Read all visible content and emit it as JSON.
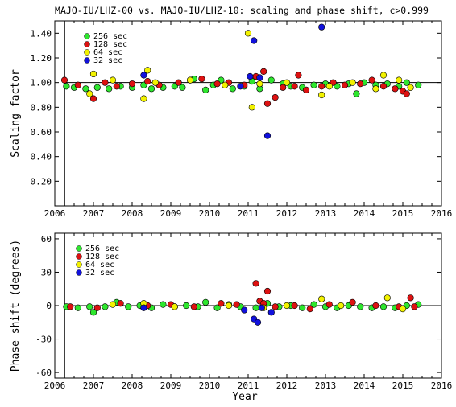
{
  "title": "MAJO-IU/LHZ-00 vs. MAJO-IU/LHZ-10: scaling and phase shift, c>0.999",
  "xlabel": "Year",
  "colors": {
    "256 sec": "#2ee62e",
    "128 sec": "#dd1111",
    "64 sec": "#f2f200",
    "32 sec": "#1111dd"
  },
  "chart_data": [
    {
      "type": "scatter",
      "ylabel": "Scaling factor",
      "xlim": [
        2006,
        2016
      ],
      "ylim": [
        0.0,
        1.5
      ],
      "x_ticks": [
        "2006",
        "2007",
        "2008",
        "2009",
        "2010",
        "2011",
        "2012",
        "2013",
        "2014",
        "2015",
        "2016"
      ],
      "y_ticks": [
        {
          "v": 0.2,
          "label": "0.20"
        },
        {
          "v": 0.4,
          "label": "0.40"
        },
        {
          "v": 0.6,
          "label": "0.60"
        },
        {
          "v": 0.8,
          "label": "0.80"
        },
        {
          "v": 1.0,
          "label": "1.00"
        },
        {
          "v": 1.2,
          "label": "1.20"
        },
        {
          "v": 1.4,
          "label": "1.40"
        }
      ],
      "reference_line": 1.0,
      "legend": [
        "256 sec",
        "128 sec",
        "64 sec",
        "32 sec"
      ],
      "series": [
        {
          "name": "256 sec",
          "points": [
            [
              2006.3,
              0.97
            ],
            [
              2006.5,
              0.96
            ],
            [
              2006.8,
              0.95
            ],
            [
              2007.1,
              0.96
            ],
            [
              2007.4,
              0.95
            ],
            [
              2007.7,
              0.97
            ],
            [
              2008.0,
              0.96
            ],
            [
              2008.3,
              0.98
            ],
            [
              2008.5,
              0.95
            ],
            [
              2008.8,
              0.96
            ],
            [
              2009.1,
              0.97
            ],
            [
              2009.3,
              0.96
            ],
            [
              2009.6,
              1.03
            ],
            [
              2009.9,
              0.94
            ],
            [
              2010.1,
              0.98
            ],
            [
              2010.3,
              1.02
            ],
            [
              2010.6,
              0.95
            ],
            [
              2010.9,
              0.97
            ],
            [
              2011.1,
              1.01
            ],
            [
              2011.3,
              0.95
            ],
            [
              2011.6,
              1.02
            ],
            [
              2011.9,
              0.99
            ],
            [
              2012.1,
              0.97
            ],
            [
              2012.4,
              0.96
            ],
            [
              2012.7,
              0.98
            ],
            [
              2013.0,
              0.99
            ],
            [
              2013.3,
              0.97
            ],
            [
              2013.6,
              0.99
            ],
            [
              2013.8,
              0.91
            ],
            [
              2014.0,
              1.0
            ],
            [
              2014.3,
              0.98
            ],
            [
              2014.6,
              0.99
            ],
            [
              2014.9,
              0.97
            ],
            [
              2015.1,
              1.0
            ],
            [
              2015.4,
              0.98
            ]
          ]
        },
        {
          "name": "128 sec",
          "points": [
            [
              2006.25,
              1.02
            ],
            [
              2006.6,
              0.98
            ],
            [
              2007.0,
              0.87
            ],
            [
              2007.3,
              1.0
            ],
            [
              2007.6,
              0.97
            ],
            [
              2008.0,
              0.99
            ],
            [
              2008.4,
              1.01
            ],
            [
              2008.7,
              0.98
            ],
            [
              2009.2,
              1.0
            ],
            [
              2009.5,
              1.02
            ],
            [
              2009.8,
              1.03
            ],
            [
              2010.2,
              0.99
            ],
            [
              2010.5,
              1.0
            ],
            [
              2010.9,
              0.98
            ],
            [
              2011.2,
              1.05
            ],
            [
              2011.4,
              1.09
            ],
            [
              2011.5,
              0.83
            ],
            [
              2011.7,
              0.88
            ],
            [
              2011.9,
              0.96
            ],
            [
              2012.2,
              0.97
            ],
            [
              2012.3,
              1.06
            ],
            [
              2012.5,
              0.94
            ],
            [
              2012.9,
              0.97
            ],
            [
              2013.2,
              1.0
            ],
            [
              2013.5,
              0.98
            ],
            [
              2013.9,
              0.99
            ],
            [
              2014.2,
              1.02
            ],
            [
              2014.5,
              0.97
            ],
            [
              2014.8,
              0.95
            ],
            [
              2015.0,
              0.93
            ],
            [
              2015.1,
              0.91
            ]
          ]
        },
        {
          "name": "64 sec",
          "points": [
            [
              2006.9,
              0.91
            ],
            [
              2007.0,
              1.07
            ],
            [
              2007.5,
              1.02
            ],
            [
              2008.3,
              0.87
            ],
            [
              2008.4,
              1.1
            ],
            [
              2008.6,
              1.0
            ],
            [
              2009.5,
              1.02
            ],
            [
              2010.4,
              0.98
            ],
            [
              2011.0,
              1.4
            ],
            [
              2011.1,
              0.8
            ],
            [
              2011.3,
              0.99
            ],
            [
              2012.0,
              1.0
            ],
            [
              2012.9,
              0.9
            ],
            [
              2013.1,
              0.97
            ],
            [
              2013.7,
              1.0
            ],
            [
              2014.3,
              0.95
            ],
            [
              2014.5,
              1.06
            ],
            [
              2014.9,
              1.02
            ],
            [
              2015.2,
              0.96
            ]
          ]
        },
        {
          "name": "32 sec",
          "points": [
            [
              2008.3,
              1.06
            ],
            [
              2010.8,
              0.97
            ],
            [
              2011.05,
              1.05
            ],
            [
              2011.15,
              1.34
            ],
            [
              2011.3,
              1.04
            ],
            [
              2011.5,
              0.57
            ],
            [
              2012.9,
              1.45
            ]
          ]
        }
      ]
    },
    {
      "type": "scatter",
      "ylabel": "Phase shift (degrees)",
      "xlim": [
        2006,
        2016
      ],
      "ylim": [
        -65,
        65
      ],
      "x_ticks": [
        "2006",
        "2007",
        "2008",
        "2009",
        "2010",
        "2011",
        "2012",
        "2013",
        "2014",
        "2015",
        "2016"
      ],
      "y_ticks": [
        {
          "v": -60,
          "label": "-60"
        },
        {
          "v": -30,
          "label": "-30"
        },
        {
          "v": 0,
          "label": "0"
        },
        {
          "v": 30,
          "label": "30"
        },
        {
          "v": 60,
          "label": "60"
        }
      ],
      "reference_line": 0,
      "legend": [
        "256 sec",
        "128 sec",
        "64 sec",
        "32 sec"
      ],
      "series": [
        {
          "name": "256 sec",
          "points": [
            [
              2006.3,
              -1
            ],
            [
              2006.6,
              -2
            ],
            [
              2006.9,
              -1
            ],
            [
              2007.0,
              -6
            ],
            [
              2007.3,
              -1
            ],
            [
              2007.6,
              3
            ],
            [
              2007.9,
              -1
            ],
            [
              2008.2,
              0
            ],
            [
              2008.5,
              -2
            ],
            [
              2008.8,
              1
            ],
            [
              2009.1,
              -1
            ],
            [
              2009.4,
              0
            ],
            [
              2009.7,
              -1
            ],
            [
              2009.9,
              3
            ],
            [
              2010.2,
              -2
            ],
            [
              2010.5,
              1
            ],
            [
              2010.8,
              -1
            ],
            [
              2011.2,
              -2
            ],
            [
              2011.5,
              2
            ],
            [
              2011.8,
              -1
            ],
            [
              2012.1,
              0
            ],
            [
              2012.4,
              -2
            ],
            [
              2012.7,
              1
            ],
            [
              2013.0,
              -1
            ],
            [
              2013.3,
              -2
            ],
            [
              2013.6,
              0
            ],
            [
              2013.9,
              -1
            ],
            [
              2014.2,
              -2
            ],
            [
              2014.5,
              -1
            ],
            [
              2014.8,
              -2
            ],
            [
              2015.1,
              0
            ],
            [
              2015.4,
              1
            ]
          ]
        },
        {
          "name": "128 sec",
          "points": [
            [
              2006.4,
              -1
            ],
            [
              2007.1,
              -2
            ],
            [
              2007.7,
              2
            ],
            [
              2008.4,
              0
            ],
            [
              2009.0,
              1
            ],
            [
              2009.6,
              -1
            ],
            [
              2010.3,
              2
            ],
            [
              2010.7,
              1
            ],
            [
              2011.2,
              20
            ],
            [
              2011.3,
              4
            ],
            [
              2011.4,
              2
            ],
            [
              2011.5,
              13
            ],
            [
              2011.7,
              -1
            ],
            [
              2012.2,
              0
            ],
            [
              2012.6,
              -3
            ],
            [
              2013.1,
              1
            ],
            [
              2013.7,
              3
            ],
            [
              2014.3,
              0
            ],
            [
              2014.9,
              -1
            ],
            [
              2015.2,
              7
            ],
            [
              2015.3,
              -1
            ]
          ]
        },
        {
          "name": "64 sec",
          "points": [
            [
              2007.5,
              1
            ],
            [
              2008.3,
              2
            ],
            [
              2009.1,
              -1
            ],
            [
              2010.5,
              0
            ],
            [
              2011.4,
              -2
            ],
            [
              2012.0,
              0
            ],
            [
              2012.9,
              6
            ],
            [
              2013.4,
              0
            ],
            [
              2014.6,
              7
            ],
            [
              2015.0,
              -3
            ]
          ]
        },
        {
          "name": "32 sec",
          "points": [
            [
              2008.3,
              -2
            ],
            [
              2010.9,
              -4
            ],
            [
              2011.15,
              -12
            ],
            [
              2011.25,
              -15
            ],
            [
              2011.35,
              -2
            ],
            [
              2011.6,
              -6
            ]
          ]
        }
      ]
    }
  ]
}
